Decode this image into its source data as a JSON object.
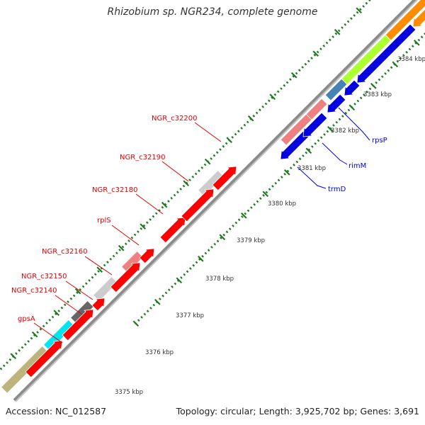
{
  "title": "Rhizobium sp. NGR234, complete genome",
  "footer": {
    "accession": "Accession: NC_012587",
    "topology": "Topology: circular; Length: 3,925,702 bp; Genes: 3,691"
  },
  "colors": {
    "backbone": "#8c8c8c",
    "tick": "#1d7a1d",
    "label_left": "#e00000",
    "label_right": "#0000e0",
    "kbp_text": "#333333"
  },
  "kbp_labels": [
    "3375 kbp",
    "3376 kbp",
    "3377 kbp",
    "3378 kbp",
    "3379 kbp",
    "3380 kbp",
    "3381 kbp",
    "3382 kbp",
    "3383 kbp",
    "3384 kbp"
  ],
  "genes_outer": [
    {
      "color": "#bcb47a"
    },
    {
      "color": "#00e5ee"
    },
    {
      "color": "#666666"
    },
    {
      "color": "#cccccc"
    },
    {
      "color": "#f08080"
    },
    {
      "color": "#cccccc"
    }
  ],
  "genes_inner": [
    {
      "color": "#ff0000"
    },
    {
      "color": "#ff0000"
    },
    {
      "color": "#ff0000"
    },
    {
      "color": "#ff0000"
    },
    {
      "color": "#ff0000"
    },
    {
      "color": "#ff0000"
    },
    {
      "color": "#ff0000"
    },
    {
      "color": "#ff0000"
    }
  ],
  "genes_right_inner": [
    {
      "color": "#f08080"
    },
    {
      "color": "#f08080"
    },
    {
      "color": "#4682b4"
    },
    {
      "color": "#adff2f"
    },
    {
      "color": "#ff8c00"
    }
  ],
  "genes_right_outer": [
    {
      "color": "#0000e0"
    },
    {
      "color": "#0000e0"
    },
    {
      "color": "#0000e0"
    },
    {
      "color": "#0000e0"
    },
    {
      "color": "#0000e0"
    }
  ],
  "left_labels": [
    {
      "text": "NGR_c32200"
    },
    {
      "text": "NGR_c32190"
    },
    {
      "text": "NGR_c32180"
    },
    {
      "text": "rplS"
    },
    {
      "text": "NGR_c32160"
    },
    {
      "text": "NGR_c32150"
    },
    {
      "text": "NGR_c32140"
    },
    {
      "text": "gpsA"
    }
  ],
  "right_labels": [
    {
      "text": "rpsP"
    },
    {
      "text": "rimM"
    },
    {
      "text": "trmD"
    }
  ]
}
